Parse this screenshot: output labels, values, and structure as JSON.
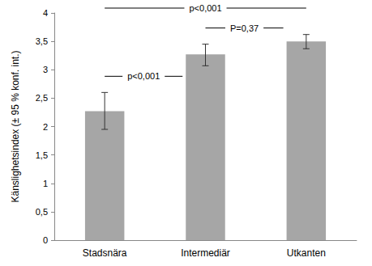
{
  "chart_data": {
    "type": "bar",
    "y_label": "Känslighetsindex (± 95 % konf. int.)",
    "categories": [
      "Stadsnära",
      "Intermediär",
      "Utkanten"
    ],
    "values": [
      2.27,
      3.27,
      3.5
    ],
    "ci_low": [
      1.95,
      3.07,
      3.37
    ],
    "ci_high": [
      2.6,
      3.45,
      3.62
    ],
    "color": "#a6a6a6",
    "ylim": [
      0,
      4
    ],
    "yticks": [
      0,
      {
        "value": 0.5,
        "label": "0,5"
      },
      1,
      {
        "value": 1.5,
        "label": "1,5"
      },
      2,
      {
        "value": 2.5,
        "label": "2,5"
      },
      3,
      {
        "value": 3.5,
        "label": "3,5"
      },
      4
    ],
    "grid": false,
    "annotations": [
      {
        "text": "p<0,001",
        "between": [
          "Stadsnära",
          "Intermediär"
        ]
      },
      {
        "text": "P=0,37",
        "between": [
          "Intermediär",
          "Utkanten"
        ]
      },
      {
        "text": "p<0,001",
        "between": [
          "Stadsnära",
          "Utkanten"
        ]
      }
    ]
  }
}
